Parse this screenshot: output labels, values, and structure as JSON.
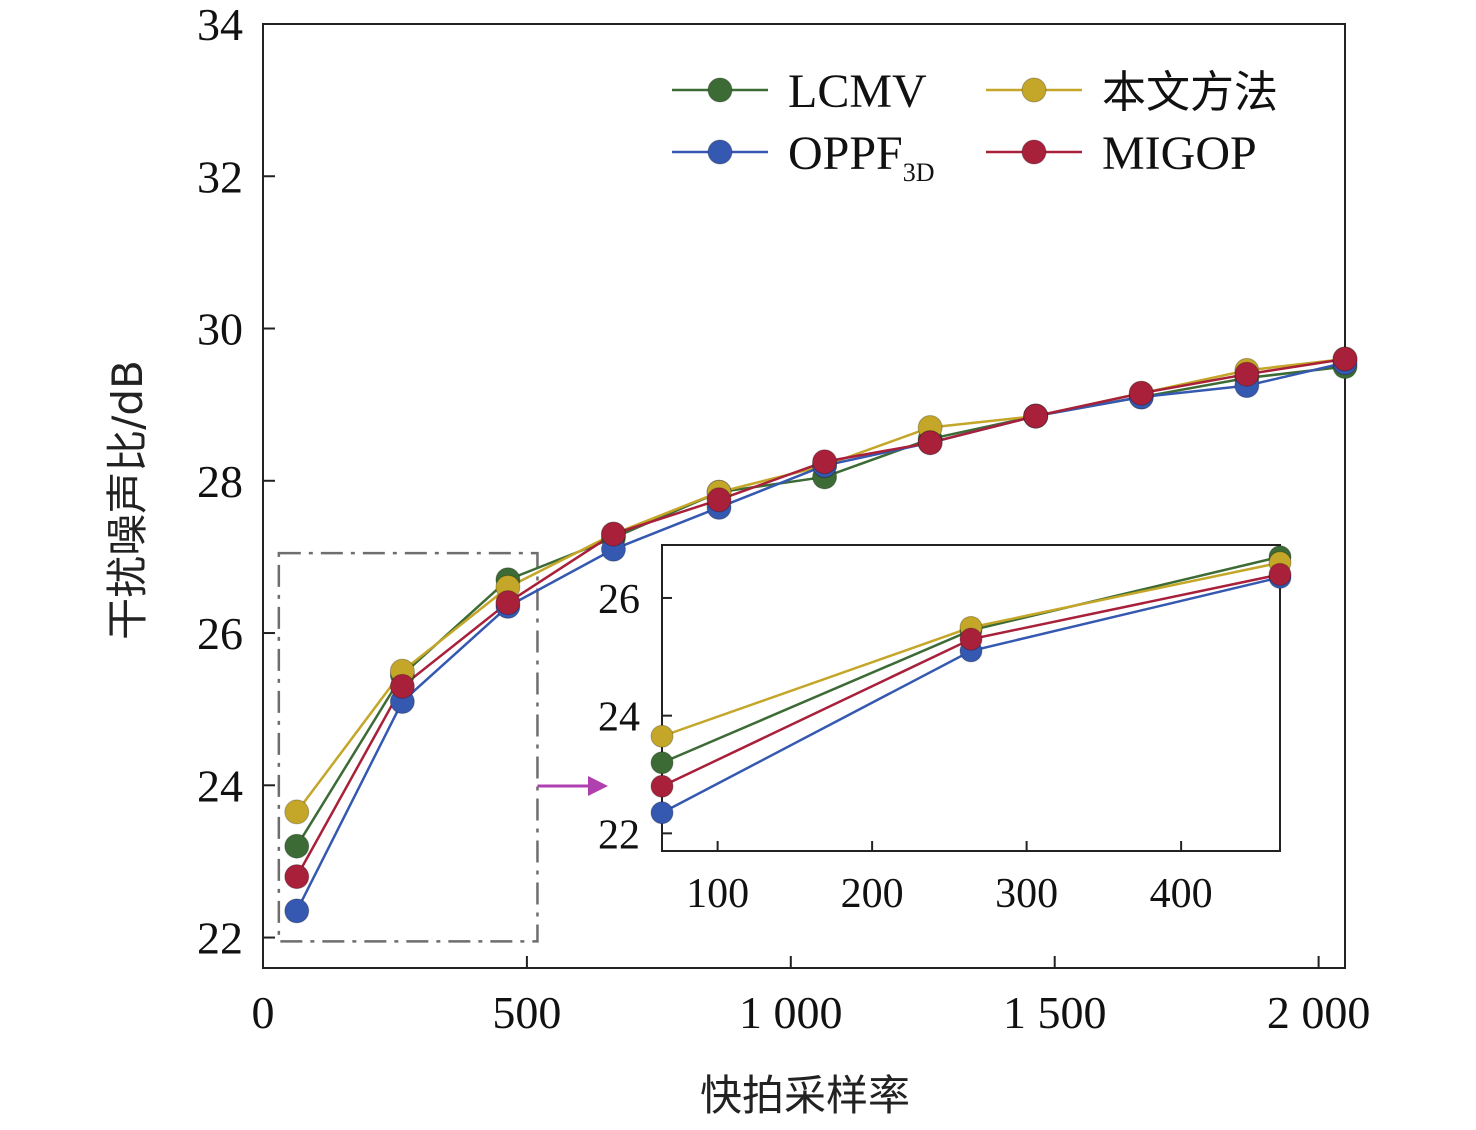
{
  "chart_data": {
    "type": "line",
    "xlabel": "快拍采样率",
    "ylabel": "干扰噪声比/dB",
    "xlim": [
      0,
      2050
    ],
    "ylim": [
      21.6,
      34
    ],
    "xticks": [
      0,
      500,
      1000,
      1500,
      2000
    ],
    "xtick_labels": [
      "0",
      "500",
      "1 000",
      "1 500",
      "2 000"
    ],
    "yticks": [
      22,
      24,
      26,
      28,
      30,
      32,
      34
    ],
    "ytick_labels": [
      "22",
      "24",
      "26",
      "28",
      "30",
      "32",
      "34"
    ],
    "x": [
      64,
      264,
      464,
      664,
      864,
      1064,
      1264,
      1464,
      1664,
      1864,
      2050
    ],
    "series": [
      {
        "name": "LCMV",
        "name_sub": "",
        "color": "#3d6b35",
        "values": [
          23.2,
          25.45,
          26.7,
          27.25,
          27.85,
          28.05,
          28.55,
          28.85,
          29.1,
          29.35,
          29.5
        ]
      },
      {
        "name": "本文方法",
        "name_sub": "",
        "color": "#c4a628",
        "values": [
          23.65,
          25.5,
          26.6,
          27.3,
          27.85,
          28.2,
          28.7,
          28.85,
          29.15,
          29.45,
          29.6
        ]
      },
      {
        "name": "OPPF",
        "name_sub": "3D",
        "color": "#3558b0",
        "values": [
          22.35,
          25.1,
          26.35,
          27.1,
          27.65,
          28.2,
          28.5,
          28.85,
          29.1,
          29.25,
          29.55
        ]
      },
      {
        "name": "MIGOP",
        "name_sub": "",
        "color": "#a8203a",
        "values": [
          22.8,
          25.3,
          26.4,
          27.3,
          27.75,
          28.25,
          28.5,
          28.85,
          29.15,
          29.4,
          29.6
        ]
      }
    ],
    "legend": {
      "placement": "top-right",
      "columns": 2,
      "order": [
        0,
        1,
        2,
        3
      ]
    },
    "inset": {
      "xlim": [
        64,
        464
      ],
      "ylim": [
        21.7,
        26.9
      ],
      "xticks": [
        100,
        200,
        300,
        400
      ],
      "xtick_labels": [
        "100",
        "200",
        "300",
        "400"
      ],
      "yticks": [
        22,
        24,
        26
      ],
      "ytick_labels": [
        "22",
        "24",
        "26"
      ],
      "zoom_region": {
        "x": [
          30,
          520
        ],
        "y": [
          21.95,
          27.05
        ]
      }
    },
    "grid": false
  }
}
